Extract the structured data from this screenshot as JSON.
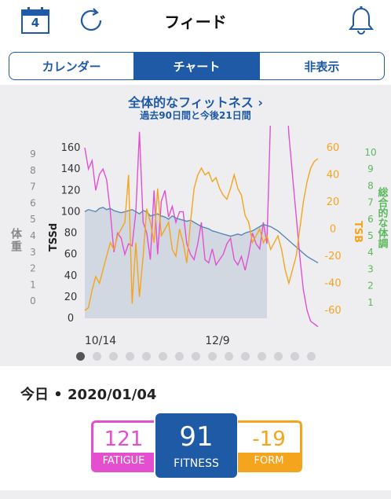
{
  "header": {
    "calendar_day": "4",
    "title": "フィード",
    "icons": [
      "calendar-icon",
      "sync-icon",
      "bell-icon"
    ]
  },
  "tabs": [
    {
      "label": "カレンダー",
      "active": false
    },
    {
      "label": "チャート",
      "active": true
    },
    {
      "label": "非表示",
      "active": false
    }
  ],
  "chart_section": {
    "title": "全体的なフィットネス ›",
    "subtitle": "過去90日間と今後21日間",
    "page_dots": 15,
    "active_dot": 0
  },
  "chart_data": {
    "type": "line",
    "x_labels": [
      "10/14",
      "12/9"
    ],
    "left_outer_axis": {
      "label": "体重",
      "ticks": [
        "9",
        "8",
        "7",
        "6",
        "5",
        "4",
        "3",
        "2",
        "1",
        "0"
      ]
    },
    "left_axis": {
      "label": "TSSd",
      "ticks": [
        "160",
        "140",
        "120",
        "100",
        "80",
        "60",
        "40",
        "20",
        "0"
      ],
      "range": [
        0,
        160
      ]
    },
    "right_axis": {
      "label": "TSB",
      "ticks": [
        "60",
        "40",
        "20",
        "0",
        "-20",
        "-40",
        "-60"
      ],
      "range": [
        -60,
        60
      ],
      "color": "#f5a41d"
    },
    "right_outer_axis": {
      "label": "総合的な体調",
      "ticks": [
        "10",
        "9",
        "8",
        "7",
        "6",
        "5",
        "4",
        "3",
        "2",
        "1"
      ],
      "color": "#5cb85c"
    },
    "series": [
      {
        "name": "FATIGUE",
        "color": "#e44fd0",
        "values": [
          160,
          140,
          148,
          120,
          135,
          140,
          130,
          100,
          62,
          80,
          75,
          60,
          70,
          68,
          100,
          175,
          90,
          80,
          55,
          120,
          60,
          110,
          120,
          95,
          105,
          90,
          100,
          100,
          70,
          60,
          55,
          70,
          90,
          55,
          52,
          65,
          50,
          55,
          60,
          70,
          75,
          55,
          50,
          58,
          45,
          60,
          80,
          70,
          65,
          90,
          70,
          85,
          95,
          80,
          100,
          120,
          70,
          40,
          10,
          -20,
          -45,
          -60,
          -68,
          -70,
          -72
        ]
      },
      {
        "name": "FITNESS",
        "color": "#5b87b5",
        "values": [
          100,
          102,
          101,
          100,
          103,
          104,
          102,
          103,
          101,
          100,
          99,
          100,
          101,
          102,
          100,
          98,
          101,
          100,
          96,
          97,
          98,
          96,
          95,
          93,
          96,
          94,
          93,
          92,
          91,
          92,
          90,
          88,
          86,
          85,
          84,
          82,
          81,
          80,
          79,
          78,
          77,
          78,
          79,
          78,
          80,
          81,
          82,
          84,
          86,
          88,
          87,
          86,
          84,
          82,
          79,
          76,
          73,
          70,
          67,
          64,
          61,
          58,
          56,
          54,
          52
        ]
      },
      {
        "name": "FORM",
        "color": "#f5a41d",
        "values": [
          -60,
          -58,
          -45,
          -35,
          -40,
          -30,
          -20,
          -10,
          -15,
          -5,
          0,
          5,
          40,
          -55,
          -10,
          -50,
          -20,
          15,
          5,
          -10,
          30,
          -5,
          0,
          5,
          -15,
          -20,
          0,
          -10,
          -25,
          5,
          30,
          40,
          45,
          40,
          42,
          35,
          38,
          30,
          25,
          22,
          30,
          40,
          30,
          25,
          10,
          5,
          -10,
          -5,
          0,
          -10,
          -5,
          -15,
          -10,
          -5,
          -15,
          -30,
          -40,
          -30,
          -20,
          0,
          20,
          35,
          45,
          50,
          52
        ]
      }
    ]
  },
  "today": {
    "label": "今日 • 2020/01/04",
    "fatigue": {
      "value": "121",
      "label": "FATIGUE",
      "color": "#e44fd0"
    },
    "fitness": {
      "value": "91",
      "label": "FITNESS",
      "color": "#1e5aa5"
    },
    "form": {
      "value": "-19",
      "label": "FORM",
      "color": "#f5a41d"
    }
  }
}
